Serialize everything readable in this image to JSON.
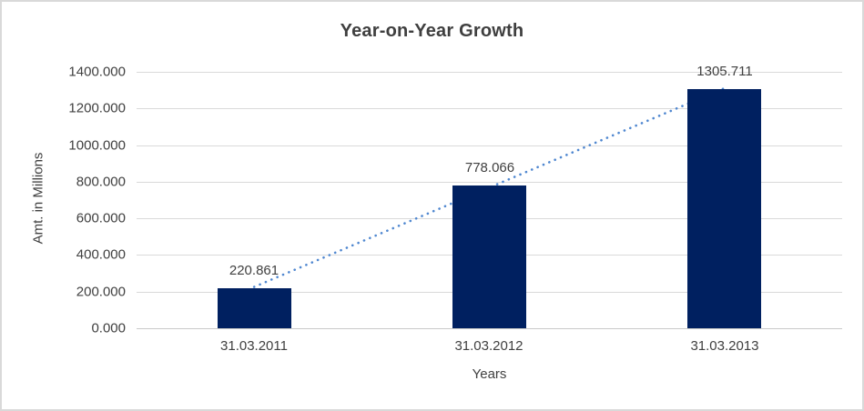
{
  "chart_data": {
    "type": "bar",
    "title": "Year-on-Year Growth",
    "xlabel": "Years",
    "ylabel": "Amt. in Millions",
    "categories": [
      "31.03.2011",
      "31.03.2012",
      "31.03.2013"
    ],
    "values": [
      220.861,
      778.066,
      1305.711
    ],
    "data_labels": [
      "220.861",
      "778.066",
      "1305.711"
    ],
    "ylim": [
      0,
      1400
    ],
    "ytick_step": 200,
    "ytick_labels": [
      "1400.000",
      "1200.000",
      "1000.000",
      "800.000",
      "600.000",
      "400.000",
      "200.000",
      "0.000"
    ],
    "grid": true,
    "legend": "none",
    "trendline": {
      "type": "linear",
      "style": "dotted"
    },
    "colors": {
      "bar": "#002060",
      "trendline": "#4F87D0",
      "gridline": "#D9D9D9",
      "axis_line": "#C9C9C9",
      "text": "#404040",
      "frame_border": "#D9D9D9",
      "background": "#FFFFFF"
    }
  }
}
